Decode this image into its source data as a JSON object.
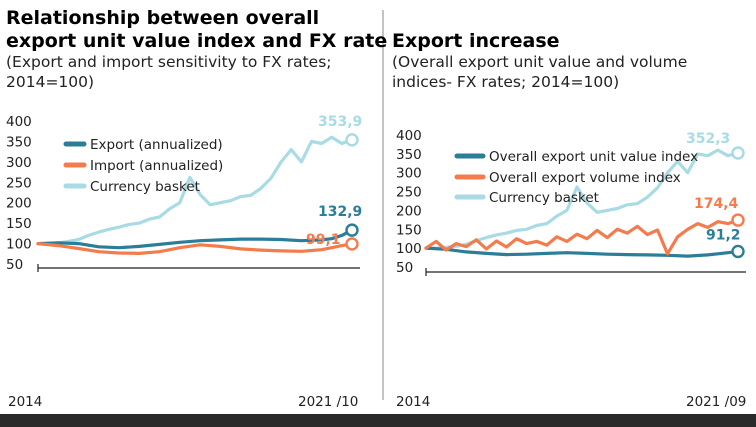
{
  "colors": {
    "export": "#2b7d98",
    "import": "#f47b4c",
    "volume": "#f47b4c",
    "basket": "#a8dbe4",
    "axis": "#222222",
    "bottom_bar": "#2a2a2a",
    "divider": "#888888"
  },
  "chart_data": [
    {
      "type": "line",
      "title_lines": [
        "Relationship between overall",
        "export unit value index and FX rate"
      ],
      "subtitle_lines": [
        "(Export and import sensitivity to FX rates;",
        "2014=100)"
      ],
      "ylim": [
        50,
        400
      ],
      "yticks": [
        400,
        350,
        300,
        250,
        200,
        150,
        100,
        50
      ],
      "x_start_label": "2014",
      "x_end_label": "2021  /10",
      "xlim": [
        2014.0,
        2021.75
      ],
      "legend_position": "top-left",
      "grid": false,
      "series": [
        {
          "name": "Export (annualized)",
          "color_key": "export",
          "end_label": "132,9",
          "x": [
            2014.0,
            2014.5,
            2015.0,
            2015.5,
            2016.0,
            2016.5,
            2017.0,
            2017.5,
            2018.0,
            2018.5,
            2019.0,
            2019.5,
            2020.0,
            2020.5,
            2021.0,
            2021.25,
            2021.5,
            2021.75
          ],
          "y": [
            100,
            102,
            100,
            92,
            90,
            93,
            98,
            103,
            107,
            109,
            111,
            111,
            110,
            107,
            109,
            112,
            120,
            132.9
          ]
        },
        {
          "name": "Import (annualized)",
          "color_key": "import",
          "end_label": "99,1",
          "x": [
            2014.0,
            2014.5,
            2015.0,
            2015.5,
            2016.0,
            2016.5,
            2017.0,
            2017.5,
            2018.0,
            2018.5,
            2019.0,
            2019.5,
            2020.0,
            2020.5,
            2021.0,
            2021.25,
            2021.5,
            2021.75
          ],
          "y": [
            100,
            95,
            88,
            80,
            77,
            76,
            80,
            90,
            97,
            93,
            87,
            84,
            82,
            81,
            85,
            90,
            95,
            99.1
          ]
        },
        {
          "name": "Currency basket",
          "color_key": "basket",
          "end_label": "353,9",
          "x": [
            2014.0,
            2014.25,
            2014.5,
            2014.75,
            2015.0,
            2015.25,
            2015.5,
            2015.75,
            2016.0,
            2016.25,
            2016.5,
            2016.75,
            2017.0,
            2017.25,
            2017.5,
            2017.75,
            2018.0,
            2018.25,
            2018.5,
            2018.75,
            2019.0,
            2019.25,
            2019.5,
            2019.75,
            2020.0,
            2020.25,
            2020.5,
            2020.75,
            2021.0,
            2021.25,
            2021.5,
            2021.75
          ],
          "y": [
            100,
            100,
            102,
            105,
            110,
            120,
            128,
            135,
            140,
            147,
            150,
            160,
            165,
            185,
            200,
            262,
            220,
            195,
            200,
            205,
            215,
            218,
            235,
            260,
            300,
            330,
            300,
            350,
            345,
            360,
            345,
            353.9
          ]
        }
      ]
    },
    {
      "type": "line",
      "title_lines": [
        "Export increase"
      ],
      "subtitle_lines": [
        "(Overall export unit value and volume",
        "indices- FX rates; 2014=100)"
      ],
      "ylim": [
        50,
        400
      ],
      "yticks": [
        400,
        350,
        300,
        250,
        200,
        150,
        100,
        50
      ],
      "x_start_label": "2014",
      "x_end_label": "2021  /09",
      "xlim": [
        2014.0,
        2021.75
      ],
      "legend_position": "top-left",
      "grid": false,
      "series": [
        {
          "name": "Overall export unit value index",
          "color_key": "export",
          "end_label": "91,2",
          "x": [
            2014.0,
            2014.5,
            2015.0,
            2015.5,
            2016.0,
            2016.5,
            2017.0,
            2017.5,
            2018.0,
            2018.5,
            2019.0,
            2019.5,
            2020.0,
            2020.5,
            2021.0,
            2021.25,
            2021.5,
            2021.75
          ],
          "y": [
            100,
            97,
            90,
            86,
            83,
            84,
            86,
            88,
            86,
            84,
            83,
            82,
            81,
            79,
            82,
            85,
            88,
            91.2
          ]
        },
        {
          "name": "Overall export volume index",
          "color_key": "volume",
          "end_label": "174,4",
          "x": [
            2014.0,
            2014.25,
            2014.5,
            2014.75,
            2015.0,
            2015.25,
            2015.5,
            2015.75,
            2016.0,
            2016.25,
            2016.5,
            2016.75,
            2017.0,
            2017.25,
            2017.5,
            2017.75,
            2018.0,
            2018.25,
            2018.5,
            2018.75,
            2019.0,
            2019.25,
            2019.5,
            2019.75,
            2020.0,
            2020.25,
            2020.5,
            2020.75,
            2021.0,
            2021.25,
            2021.5,
            2021.75
          ],
          "y": [
            100,
            118,
            95,
            112,
            104,
            122,
            98,
            119,
            103,
            125,
            112,
            118,
            108,
            130,
            118,
            137,
            125,
            147,
            128,
            150,
            140,
            158,
            136,
            148,
            85,
            130,
            150,
            165,
            155,
            170,
            165,
            174.4
          ]
        },
        {
          "name": "Currency basket",
          "color_key": "basket",
          "end_label": "352,3",
          "x": [
            2014.0,
            2014.25,
            2014.5,
            2014.75,
            2015.0,
            2015.25,
            2015.5,
            2015.75,
            2016.0,
            2016.25,
            2016.5,
            2016.75,
            2017.0,
            2017.25,
            2017.5,
            2017.75,
            2018.0,
            2018.25,
            2018.5,
            2018.75,
            2019.0,
            2019.25,
            2019.5,
            2019.75,
            2020.0,
            2020.25,
            2020.5,
            2020.75,
            2021.0,
            2021.25,
            2021.5,
            2021.75
          ],
          "y": [
            100,
            100,
            102,
            105,
            110,
            120,
            128,
            135,
            140,
            147,
            150,
            160,
            165,
            185,
            200,
            262,
            220,
            195,
            200,
            205,
            215,
            218,
            235,
            260,
            300,
            330,
            300,
            350,
            345,
            360,
            345,
            352.3
          ]
        }
      ]
    }
  ]
}
